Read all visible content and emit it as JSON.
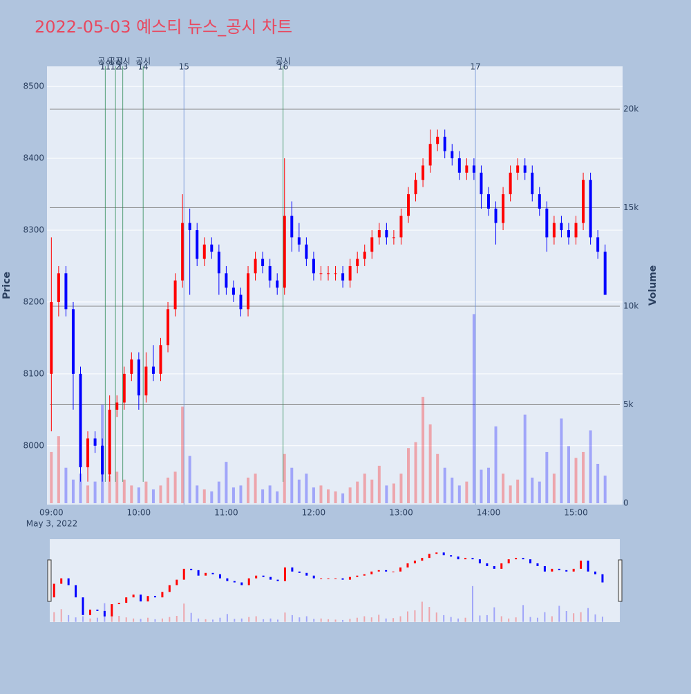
{
  "chart_data": {
    "type": "candlestick",
    "title": "2022-05-03 예스티 뉴스_공시 차트",
    "x": [
      "09:00",
      "09:05",
      "09:10",
      "09:15",
      "09:20",
      "09:25",
      "09:30",
      "09:35",
      "09:40",
      "09:45",
      "09:50",
      "09:55",
      "10:00",
      "10:05",
      "10:10",
      "10:15",
      "10:20",
      "10:25",
      "10:30",
      "10:35",
      "10:40",
      "10:45",
      "10:50",
      "10:55",
      "11:00",
      "11:05",
      "11:10",
      "11:15",
      "11:20",
      "11:25",
      "11:30",
      "11:35",
      "11:40",
      "11:45",
      "11:50",
      "11:55",
      "12:00",
      "12:05",
      "12:10",
      "12:15",
      "12:20",
      "12:25",
      "12:30",
      "12:35",
      "12:40",
      "12:45",
      "12:50",
      "12:55",
      "13:00",
      "13:05",
      "13:10",
      "13:15",
      "13:20",
      "13:25",
      "13:30",
      "13:35",
      "13:40",
      "13:45",
      "13:50",
      "13:55",
      "14:00",
      "14:05",
      "14:10",
      "14:15",
      "14:20",
      "14:25",
      "14:30",
      "14:35",
      "14:40",
      "14:45",
      "14:50",
      "14:55",
      "15:00",
      "15:05",
      "15:10",
      "15:15",
      "15:20"
    ],
    "open": [
      8100,
      8200,
      8240,
      8190,
      8100,
      7970,
      8010,
      8000,
      7960,
      8050,
      8060,
      8100,
      8120,
      8070,
      8110,
      8100,
      8140,
      8190,
      8230,
      8310,
      8300,
      8260,
      8280,
      8270,
      8240,
      8220,
      8210,
      8190,
      8240,
      8260,
      8250,
      8230,
      8220,
      8320,
      8290,
      8280,
      8260,
      8240,
      8240,
      8240,
      8240,
      8230,
      8250,
      8260,
      8270,
      8290,
      8300,
      8290,
      8290,
      8320,
      8350,
      8370,
      8390,
      8420,
      8430,
      8410,
      8400,
      8380,
      8390,
      8380,
      8350,
      8330,
      8310,
      8350,
      8380,
      8390,
      8380,
      8350,
      8330,
      8290,
      8310,
      8300,
      8290,
      8310,
      8370,
      8290,
      8270
    ],
    "high": [
      8290,
      8250,
      8250,
      8200,
      8110,
      8020,
      8020,
      8010,
      8070,
      8070,
      8110,
      8130,
      8130,
      8130,
      8140,
      8150,
      8200,
      8240,
      8350,
      8330,
      8310,
      8290,
      8290,
      8280,
      8250,
      8230,
      8220,
      8250,
      8270,
      8270,
      8260,
      8240,
      8400,
      8340,
      8310,
      8290,
      8270,
      8250,
      8250,
      8250,
      8250,
      8260,
      8270,
      8280,
      8300,
      8310,
      8310,
      8300,
      8330,
      8360,
      8380,
      8400,
      8440,
      8440,
      8440,
      8420,
      8410,
      8400,
      8400,
      8390,
      8360,
      8340,
      8360,
      8390,
      8400,
      8400,
      8390,
      8360,
      8340,
      8320,
      8320,
      8310,
      8320,
      8380,
      8380,
      8300,
      8280
    ],
    "low": [
      8020,
      8180,
      8180,
      8050,
      7950,
      7950,
      7990,
      7950,
      7950,
      8040,
      8050,
      8090,
      8050,
      8060,
      8090,
      8090,
      8130,
      8180,
      8220,
      8210,
      8250,
      8250,
      8260,
      8210,
      8210,
      8200,
      8180,
      8180,
      8230,
      8240,
      8220,
      8210,
      8210,
      8270,
      8270,
      8250,
      8230,
      8230,
      8230,
      8230,
      8220,
      8220,
      8240,
      8250,
      8260,
      8280,
      8280,
      8280,
      8280,
      8310,
      8340,
      8360,
      8380,
      8410,
      8400,
      8390,
      8370,
      8370,
      8370,
      8330,
      8320,
      8280,
      8300,
      8340,
      8370,
      8370,
      8340,
      8320,
      8270,
      8280,
      8290,
      8280,
      8280,
      8300,
      8280,
      8260,
      8210
    ],
    "close": [
      8200,
      8240,
      8190,
      8100,
      7970,
      8010,
      8000,
      7960,
      8050,
      8060,
      8100,
      8120,
      8070,
      8110,
      8100,
      8140,
      8190,
      8230,
      8310,
      8300,
      8260,
      8280,
      8270,
      8240,
      8220,
      8210,
      8190,
      8240,
      8260,
      8250,
      8230,
      8220,
      8320,
      8290,
      8280,
      8260,
      8240,
      8240,
      8240,
      8240,
      8230,
      8250,
      8260,
      8270,
      8290,
      8300,
      8290,
      8290,
      8320,
      8350,
      8370,
      8390,
      8420,
      8430,
      8410,
      8400,
      8380,
      8390,
      8380,
      8350,
      8330,
      8310,
      8350,
      8380,
      8390,
      8380,
      8350,
      8330,
      8290,
      8310,
      8300,
      8290,
      8310,
      8370,
      8290,
      8270,
      8210
    ],
    "volume": [
      2600,
      3400,
      1800,
      1200,
      1500,
      900,
      1100,
      5000,
      1400,
      1600,
      1200,
      900,
      800,
      1100,
      700,
      900,
      1300,
      1600,
      4900,
      2400,
      900,
      700,
      600,
      1100,
      2100,
      800,
      900,
      1300,
      1500,
      700,
      900,
      600,
      2500,
      1800,
      1200,
      1500,
      800,
      900,
      700,
      600,
      500,
      800,
      1100,
      1500,
      1200,
      1900,
      900,
      1000,
      1500,
      2800,
      3100,
      5400,
      4000,
      2500,
      1800,
      1300,
      900,
      1100,
      9600,
      1700,
      1800,
      3900,
      1500,
      900,
      1200,
      4500,
      1300,
      1100,
      2600,
      1500,
      4300,
      2900,
      2300,
      2600,
      3700,
      2000,
      1400
    ],
    "increasing_color": "#ff0000",
    "decreasing_color": "#0000ff",
    "xlim": [
      "08:57",
      "15:32"
    ],
    "xticks": [
      "09:00",
      "10:00",
      "11:00",
      "12:00",
      "13:00",
      "14:00",
      "15:00"
    ],
    "x_date_label": "May 3, 2022",
    "ylim": [
      7918,
      8528
    ],
    "yticks": [
      8000,
      8100,
      8200,
      8300,
      8400,
      8500
    ],
    "ylabel": "Price",
    "y2lim": [
      -70,
      22175
    ],
    "y2ticks": [
      0,
      {
        "value": 5000,
        "label": "5k"
      },
      {
        "value": 10000,
        "label": "10k"
      },
      {
        "value": 15000,
        "label": "15k"
      },
      {
        "value": 20000,
        "label": "20k"
      }
    ],
    "y2label": "Volume",
    "annotations": [
      {
        "x": "09:37",
        "label": "11",
        "note": "공시",
        "color": "#2e8b57"
      },
      {
        "x": "09:44",
        "label": "12",
        "note": "공시",
        "color": "#2e8b57"
      },
      {
        "x": "09:49",
        "label": "13",
        "note": "공시",
        "color": "#2e8b57"
      },
      {
        "x": "10:03",
        "label": "14",
        "note": "공시",
        "color": "#2e8b57"
      },
      {
        "x": "10:31",
        "label": "15",
        "color": "#6b8fd6"
      },
      {
        "x": "11:39",
        "label": "16",
        "note": "공시",
        "color": "#2e8b57"
      },
      {
        "x": "13:51",
        "label": "17",
        "color": "#6b8fd6"
      }
    ]
  }
}
